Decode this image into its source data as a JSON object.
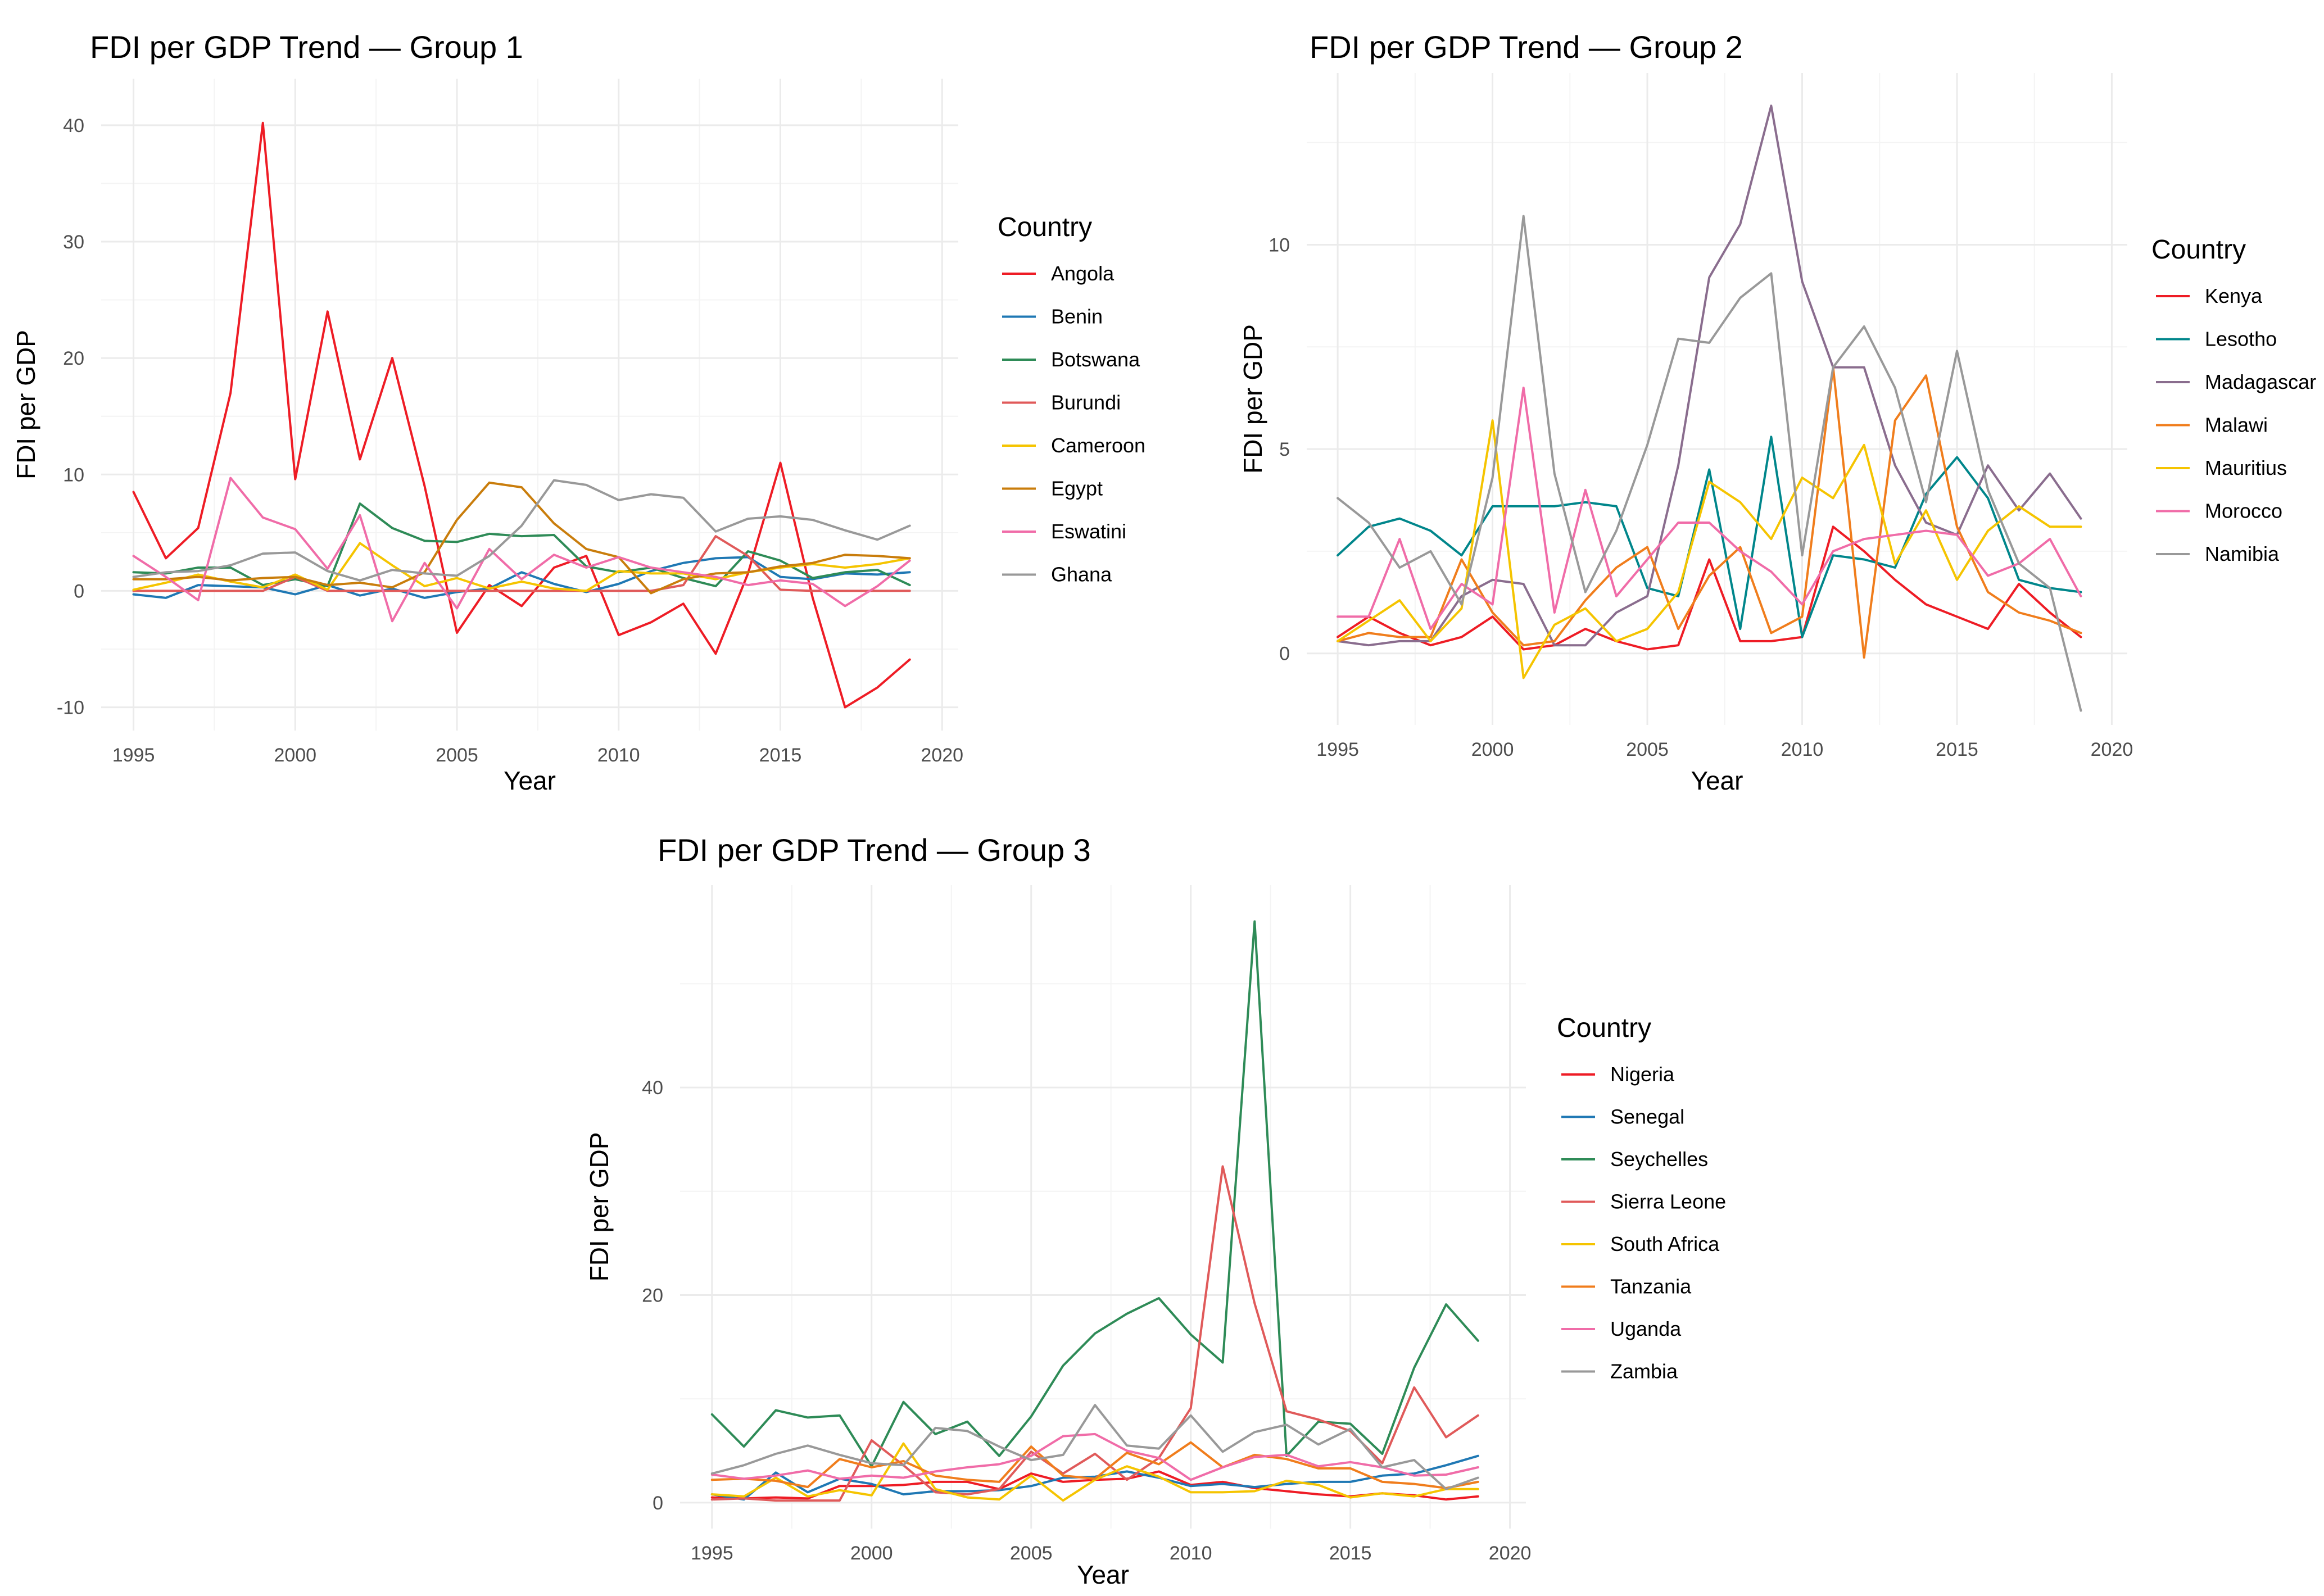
{
  "chart_data": [
    {
      "type": "line",
      "title": "FDI per GDP Trend — Group 1",
      "xlabel": "Year",
      "ylabel": "FDI per GDP",
      "xlim": [
        1994,
        2020.5
      ],
      "ylim": [
        -12,
        44
      ],
      "xticks": [
        1995,
        2000,
        2005,
        2010,
        2015,
        2020
      ],
      "yticks": [
        -10,
        0,
        10,
        20,
        30,
        40
      ],
      "legend_title": "Country",
      "x": [
        1995,
        1996,
        1997,
        1998,
        1999,
        2000,
        2001,
        2002,
        2003,
        2004,
        2005,
        2006,
        2007,
        2008,
        2009,
        2010,
        2011,
        2012,
        2013,
        2014,
        2015,
        2016,
        2017,
        2018,
        2019
      ],
      "series": [
        {
          "name": "Angola",
          "color": "#ee1c25",
          "values": [
            8.5,
            2.8,
            5.4,
            17.0,
            40.2,
            9.6,
            24.0,
            11.3,
            20.0,
            9.0,
            -3.6,
            0.5,
            -1.3,
            2.0,
            3.0,
            -3.8,
            -2.7,
            -1.1,
            -5.4,
            1.5,
            11.0,
            -0.6,
            -10.0,
            -8.3,
            -5.9
          ]
        },
        {
          "name": "Benin",
          "color": "#1f78b4",
          "values": [
            -0.3,
            -0.6,
            0.5,
            0.4,
            0.3,
            -0.3,
            0.5,
            -0.4,
            0.2,
            -0.6,
            -0.1,
            0.2,
            1.6,
            0.6,
            -0.1,
            0.6,
            1.7,
            2.4,
            2.8,
            2.9,
            1.2,
            1.0,
            1.5,
            1.4,
            1.6
          ]
        },
        {
          "name": "Botswana",
          "color": "#2e8b57",
          "values": [
            1.6,
            1.5,
            2.0,
            2.0,
            0.5,
            1.0,
            0.4,
            7.5,
            5.4,
            4.3,
            4.2,
            4.9,
            4.7,
            4.8,
            2.1,
            1.6,
            2.0,
            1.1,
            0.4,
            3.4,
            2.6,
            1.1,
            1.6,
            1.8,
            0.5
          ]
        },
        {
          "name": "Burundi",
          "color": "#e05a5a",
          "values": [
            0.0,
            0.0,
            0.0,
            0.0,
            0.0,
            1.2,
            0.0,
            0.0,
            0.0,
            0.0,
            0.0,
            0.0,
            0.0,
            0.0,
            0.0,
            0.0,
            0.0,
            0.5,
            4.7,
            3.0,
            0.1,
            0.0,
            0.0,
            0.0,
            0.0
          ]
        },
        {
          "name": "Cameroon",
          "color": "#f5c400",
          "values": [
            0.1,
            0.7,
            1.4,
            0.8,
            0.3,
            1.4,
            0.1,
            4.1,
            2.2,
            0.4,
            1.1,
            0.2,
            0.8,
            0.2,
            0.0,
            1.7,
            1.5,
            1.5,
            1.0,
            1.6,
            2.0,
            2.3,
            2.0,
            2.3,
            2.8
          ]
        },
        {
          "name": "Egypt",
          "color": "#c97d0c",
          "values": [
            1.0,
            1.0,
            1.2,
            0.9,
            1.1,
            1.2,
            0.5,
            0.7,
            0.3,
            1.6,
            6.1,
            9.3,
            8.9,
            5.8,
            3.6,
            2.9,
            -0.2,
            1.0,
            1.5,
            1.6,
            2.1,
            2.4,
            3.1,
            3.0,
            2.8
          ]
        },
        {
          "name": "Eswatini",
          "color": "#f06ca8",
          "values": [
            3.0,
            1.2,
            -0.8,
            9.7,
            6.3,
            5.3,
            1.9,
            6.5,
            -2.6,
            2.4,
            -1.5,
            3.6,
            1.0,
            3.1,
            2.0,
            2.9,
            2.0,
            1.6,
            1.2,
            0.5,
            0.9,
            0.6,
            -1.3,
            0.4,
            2.6
          ]
        },
        {
          "name": "Ghana",
          "color": "#999999",
          "values": [
            1.2,
            1.6,
            1.7,
            2.2,
            3.2,
            3.3,
            1.7,
            0.9,
            1.8,
            1.5,
            1.3,
            3.0,
            5.6,
            9.5,
            9.1,
            7.8,
            8.3,
            8.0,
            5.1,
            6.2,
            6.4,
            6.1,
            5.2,
            4.4,
            5.6
          ]
        }
      ]
    },
    {
      "type": "line",
      "title": "FDI per GDP Trend — Group 2",
      "xlabel": "Year",
      "ylabel": "FDI per GDP",
      "xlim": [
        1994,
        2020.5
      ],
      "ylim": [
        -1.75,
        14.2
      ],
      "xticks": [
        1995,
        2000,
        2005,
        2010,
        2015,
        2020
      ],
      "yticks": [
        0,
        5,
        10
      ],
      "legend_title": "Country",
      "x": [
        1995,
        1996,
        1997,
        1998,
        1999,
        2000,
        2001,
        2002,
        2003,
        2004,
        2005,
        2006,
        2007,
        2008,
        2009,
        2010,
        2011,
        2012,
        2013,
        2014,
        2015,
        2016,
        2017,
        2018,
        2019
      ],
      "series": [
        {
          "name": "Kenya",
          "color": "#ee1c25",
          "values": [
            0.4,
            0.9,
            0.5,
            0.2,
            0.4,
            0.9,
            0.1,
            0.2,
            0.6,
            0.3,
            0.1,
            0.2,
            2.3,
            0.3,
            0.3,
            0.4,
            3.1,
            2.5,
            1.8,
            1.2,
            0.9,
            0.6,
            1.7,
            1.0,
            0.4
          ]
        },
        {
          "name": "Lesotho",
          "color": "#00868b",
          "values": [
            2.4,
            3.1,
            3.3,
            3.0,
            2.4,
            3.6,
            3.6,
            3.6,
            3.7,
            3.6,
            1.6,
            1.4,
            4.5,
            0.6,
            5.3,
            0.4,
            2.4,
            2.3,
            2.1,
            3.9,
            4.8,
            3.8,
            1.8,
            1.6,
            1.5
          ]
        },
        {
          "name": "Madagascar",
          "color": "#8a6d8e",
          "values": [
            0.3,
            0.2,
            0.3,
            0.3,
            1.4,
            1.8,
            1.7,
            0.2,
            0.2,
            1.0,
            1.4,
            4.6,
            9.2,
            10.5,
            13.4,
            9.1,
            7.0,
            7.0,
            4.6,
            3.2,
            2.9,
            4.6,
            3.5,
            4.4,
            3.3
          ]
        },
        {
          "name": "Malawi",
          "color": "#f07d1c",
          "values": [
            0.3,
            0.5,
            0.4,
            0.4,
            2.3,
            1.0,
            0.2,
            0.3,
            1.3,
            2.1,
            2.6,
            0.6,
            1.9,
            2.6,
            0.5,
            0.9,
            7.0,
            -0.1,
            5.7,
            6.8,
            3.1,
            1.5,
            1.0,
            0.8,
            0.5
          ]
        },
        {
          "name": "Mauritius",
          "color": "#f5c400",
          "values": [
            0.3,
            0.8,
            1.3,
            0.3,
            1.1,
            5.7,
            -0.6,
            0.7,
            1.1,
            0.3,
            0.6,
            1.5,
            4.2,
            3.7,
            2.8,
            4.3,
            3.8,
            5.1,
            2.2,
            3.5,
            1.8,
            3.0,
            3.6,
            3.1,
            3.1
          ]
        },
        {
          "name": "Morocco",
          "color": "#f06ca8",
          "values": [
            0.9,
            0.9,
            2.8,
            0.6,
            1.7,
            1.2,
            6.5,
            1.0,
            4.0,
            1.4,
            2.3,
            3.2,
            3.2,
            2.5,
            2.0,
            1.2,
            2.5,
            2.8,
            2.9,
            3.0,
            2.9,
            1.9,
            2.2,
            2.8,
            1.4
          ]
        },
        {
          "name": "Namibia",
          "color": "#999999",
          "values": [
            3.8,
            3.2,
            2.1,
            2.5,
            1.2,
            4.3,
            10.7,
            4.4,
            1.5,
            3.0,
            5.1,
            7.7,
            7.6,
            8.7,
            9.3,
            2.4,
            7.0,
            8.0,
            6.5,
            3.7,
            7.4,
            4.0,
            2.2,
            1.6,
            -1.4
          ]
        }
      ]
    },
    {
      "type": "line",
      "title": "FDI per GDP Trend — Group 3",
      "xlabel": "Year",
      "ylabel": "FDI per GDP",
      "xlim": [
        1994,
        2020.5
      ],
      "ylim": [
        -2.5,
        59.5
      ],
      "xticks": [
        1995,
        2000,
        2005,
        2010,
        2015,
        2020
      ],
      "yticks": [
        0,
        20,
        40
      ],
      "legend_title": "Country",
      "x": [
        1995,
        1996,
        1997,
        1998,
        1999,
        2000,
        2001,
        2002,
        2003,
        2004,
        2005,
        2006,
        2007,
        2008,
        2009,
        2010,
        2011,
        2012,
        2013,
        2014,
        2015,
        2016,
        2017,
        2018,
        2019
      ],
      "series": [
        {
          "name": "Nigeria",
          "color": "#ee1c25",
          "values": [
            0.5,
            0.4,
            0.5,
            0.4,
            1.6,
            1.6,
            1.7,
            2.0,
            2.0,
            1.3,
            2.8,
            2.0,
            2.2,
            2.3,
            3.0,
            1.7,
            2.0,
            1.4,
            1.1,
            0.8,
            0.6,
            0.9,
            0.7,
            0.3,
            0.6
          ]
        },
        {
          "name": "Senegal",
          "color": "#1f78b4",
          "values": [
            0.8,
            0.3,
            2.9,
            1.0,
            2.3,
            1.8,
            0.8,
            1.1,
            1.1,
            1.2,
            1.6,
            2.4,
            2.5,
            3.0,
            2.4,
            1.6,
            1.8,
            1.5,
            1.8,
            2.0,
            2.0,
            2.6,
            2.8,
            3.6,
            4.5
          ]
        },
        {
          "name": "Seychelles",
          "color": "#2e8b57",
          "values": [
            8.5,
            5.4,
            8.9,
            8.2,
            8.4,
            3.5,
            9.7,
            6.6,
            7.8,
            4.5,
            8.3,
            13.2,
            16.3,
            18.2,
            19.7,
            16.2,
            13.5,
            56.0,
            4.5,
            7.8,
            7.6,
            4.7,
            13.0,
            19.1,
            15.6
          ]
        },
        {
          "name": "Sierra Leone",
          "color": "#e05a5a",
          "values": [
            0.3,
            0.4,
            0.2,
            0.2,
            0.2,
            6.0,
            3.6,
            1.0,
            0.8,
            1.3,
            4.9,
            2.8,
            4.7,
            2.2,
            4.3,
            9.1,
            32.4,
            19.2,
            8.8,
            8.0,
            6.9,
            3.8,
            11.1,
            6.3,
            8.4
          ]
        },
        {
          "name": "South Africa",
          "color": "#f5c400",
          "values": [
            0.8,
            0.6,
            2.4,
            0.6,
            1.2,
            0.7,
            5.7,
            1.3,
            0.5,
            0.3,
            2.6,
            0.2,
            2.2,
            3.5,
            2.5,
            1.0,
            1.0,
            1.1,
            2.1,
            1.7,
            0.5,
            0.9,
            0.6,
            1.3,
            1.3
          ]
        },
        {
          "name": "Tanzania",
          "color": "#f07d1c",
          "values": [
            2.2,
            2.3,
            2.1,
            1.5,
            4.2,
            3.4,
            4.0,
            2.6,
            2.2,
            2.0,
            5.4,
            2.6,
            2.3,
            4.8,
            3.7,
            5.8,
            3.4,
            4.6,
            4.2,
            3.3,
            3.3,
            2.0,
            1.8,
            1.4,
            2.0
          ]
        },
        {
          "name": "Uganda",
          "color": "#f06ca8",
          "values": [
            2.7,
            2.3,
            2.6,
            3.1,
            2.3,
            2.6,
            2.4,
            3.0,
            3.4,
            3.7,
            4.5,
            6.4,
            6.6,
            5.0,
            4.3,
            2.2,
            3.4,
            4.4,
            4.6,
            3.5,
            3.9,
            3.4,
            2.6,
            2.7,
            3.4
          ]
        },
        {
          "name": "Zambia",
          "color": "#999999",
          "values": [
            2.8,
            3.6,
            4.7,
            5.5,
            4.6,
            3.8,
            3.6,
            7.2,
            6.9,
            5.4,
            4.1,
            4.6,
            9.4,
            5.5,
            5.2,
            8.4,
            4.9,
            6.8,
            7.5,
            5.6,
            7.1,
            3.4,
            4.1,
            1.3,
            2.4
          ]
        }
      ]
    }
  ]
}
